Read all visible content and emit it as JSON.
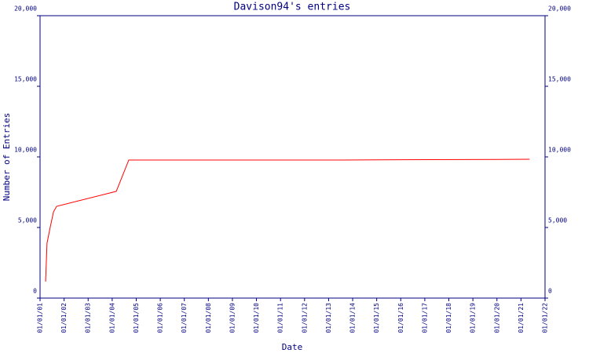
{
  "chart_data": {
    "type": "line",
    "title": "Davison94's entries",
    "x_label": "Date",
    "y_label": "Number of Entries",
    "x": [
      2001.23,
      2001.29,
      2001.42,
      2001.56,
      2001.69,
      2004.17,
      2004.69,
      2013.52,
      2021.36
    ],
    "values": [
      1170,
      3890,
      5000,
      6110,
      6500,
      7560,
      9780,
      9780,
      9830
    ],
    "color": "#ff0000",
    "axis_color": "#000080",
    "xlim": [
      2001,
      2022
    ],
    "xticks": [
      {
        "value": 2001,
        "label": "01/01/01"
      },
      {
        "value": 2002,
        "label": "01/01/02"
      },
      {
        "value": 2003,
        "label": "01/01/03"
      },
      {
        "value": 2004,
        "label": "01/01/04"
      },
      {
        "value": 2005,
        "label": "01/01/05"
      },
      {
        "value": 2006,
        "label": "01/01/06"
      },
      {
        "value": 2007,
        "label": "01/01/07"
      },
      {
        "value": 2008,
        "label": "01/01/08"
      },
      {
        "value": 2009,
        "label": "01/01/09"
      },
      {
        "value": 2010,
        "label": "01/01/10"
      },
      {
        "value": 2011,
        "label": "01/01/11"
      },
      {
        "value": 2012,
        "label": "01/01/12"
      },
      {
        "value": 2013,
        "label": "01/01/13"
      },
      {
        "value": 2014,
        "label": "01/01/14"
      },
      {
        "value": 2015,
        "label": "01/01/15"
      },
      {
        "value": 2016,
        "label": "01/01/16"
      },
      {
        "value": 2017,
        "label": "01/01/17"
      },
      {
        "value": 2018,
        "label": "01/01/18"
      },
      {
        "value": 2019,
        "label": "01/01/19"
      },
      {
        "value": 2020,
        "label": "01/01/20"
      },
      {
        "value": 2021,
        "label": "01/01/21"
      },
      {
        "value": 2022,
        "label": "01/01/22"
      }
    ],
    "ylim": [
      0,
      20000
    ],
    "yticks": [
      0,
      {
        "value": 5000,
        "label": "5,000"
      },
      {
        "value": 10000,
        "label": "10,000"
      },
      {
        "value": 15000,
        "label": "15,000"
      },
      {
        "value": 20000,
        "label": "20,000"
      }
    ]
  }
}
